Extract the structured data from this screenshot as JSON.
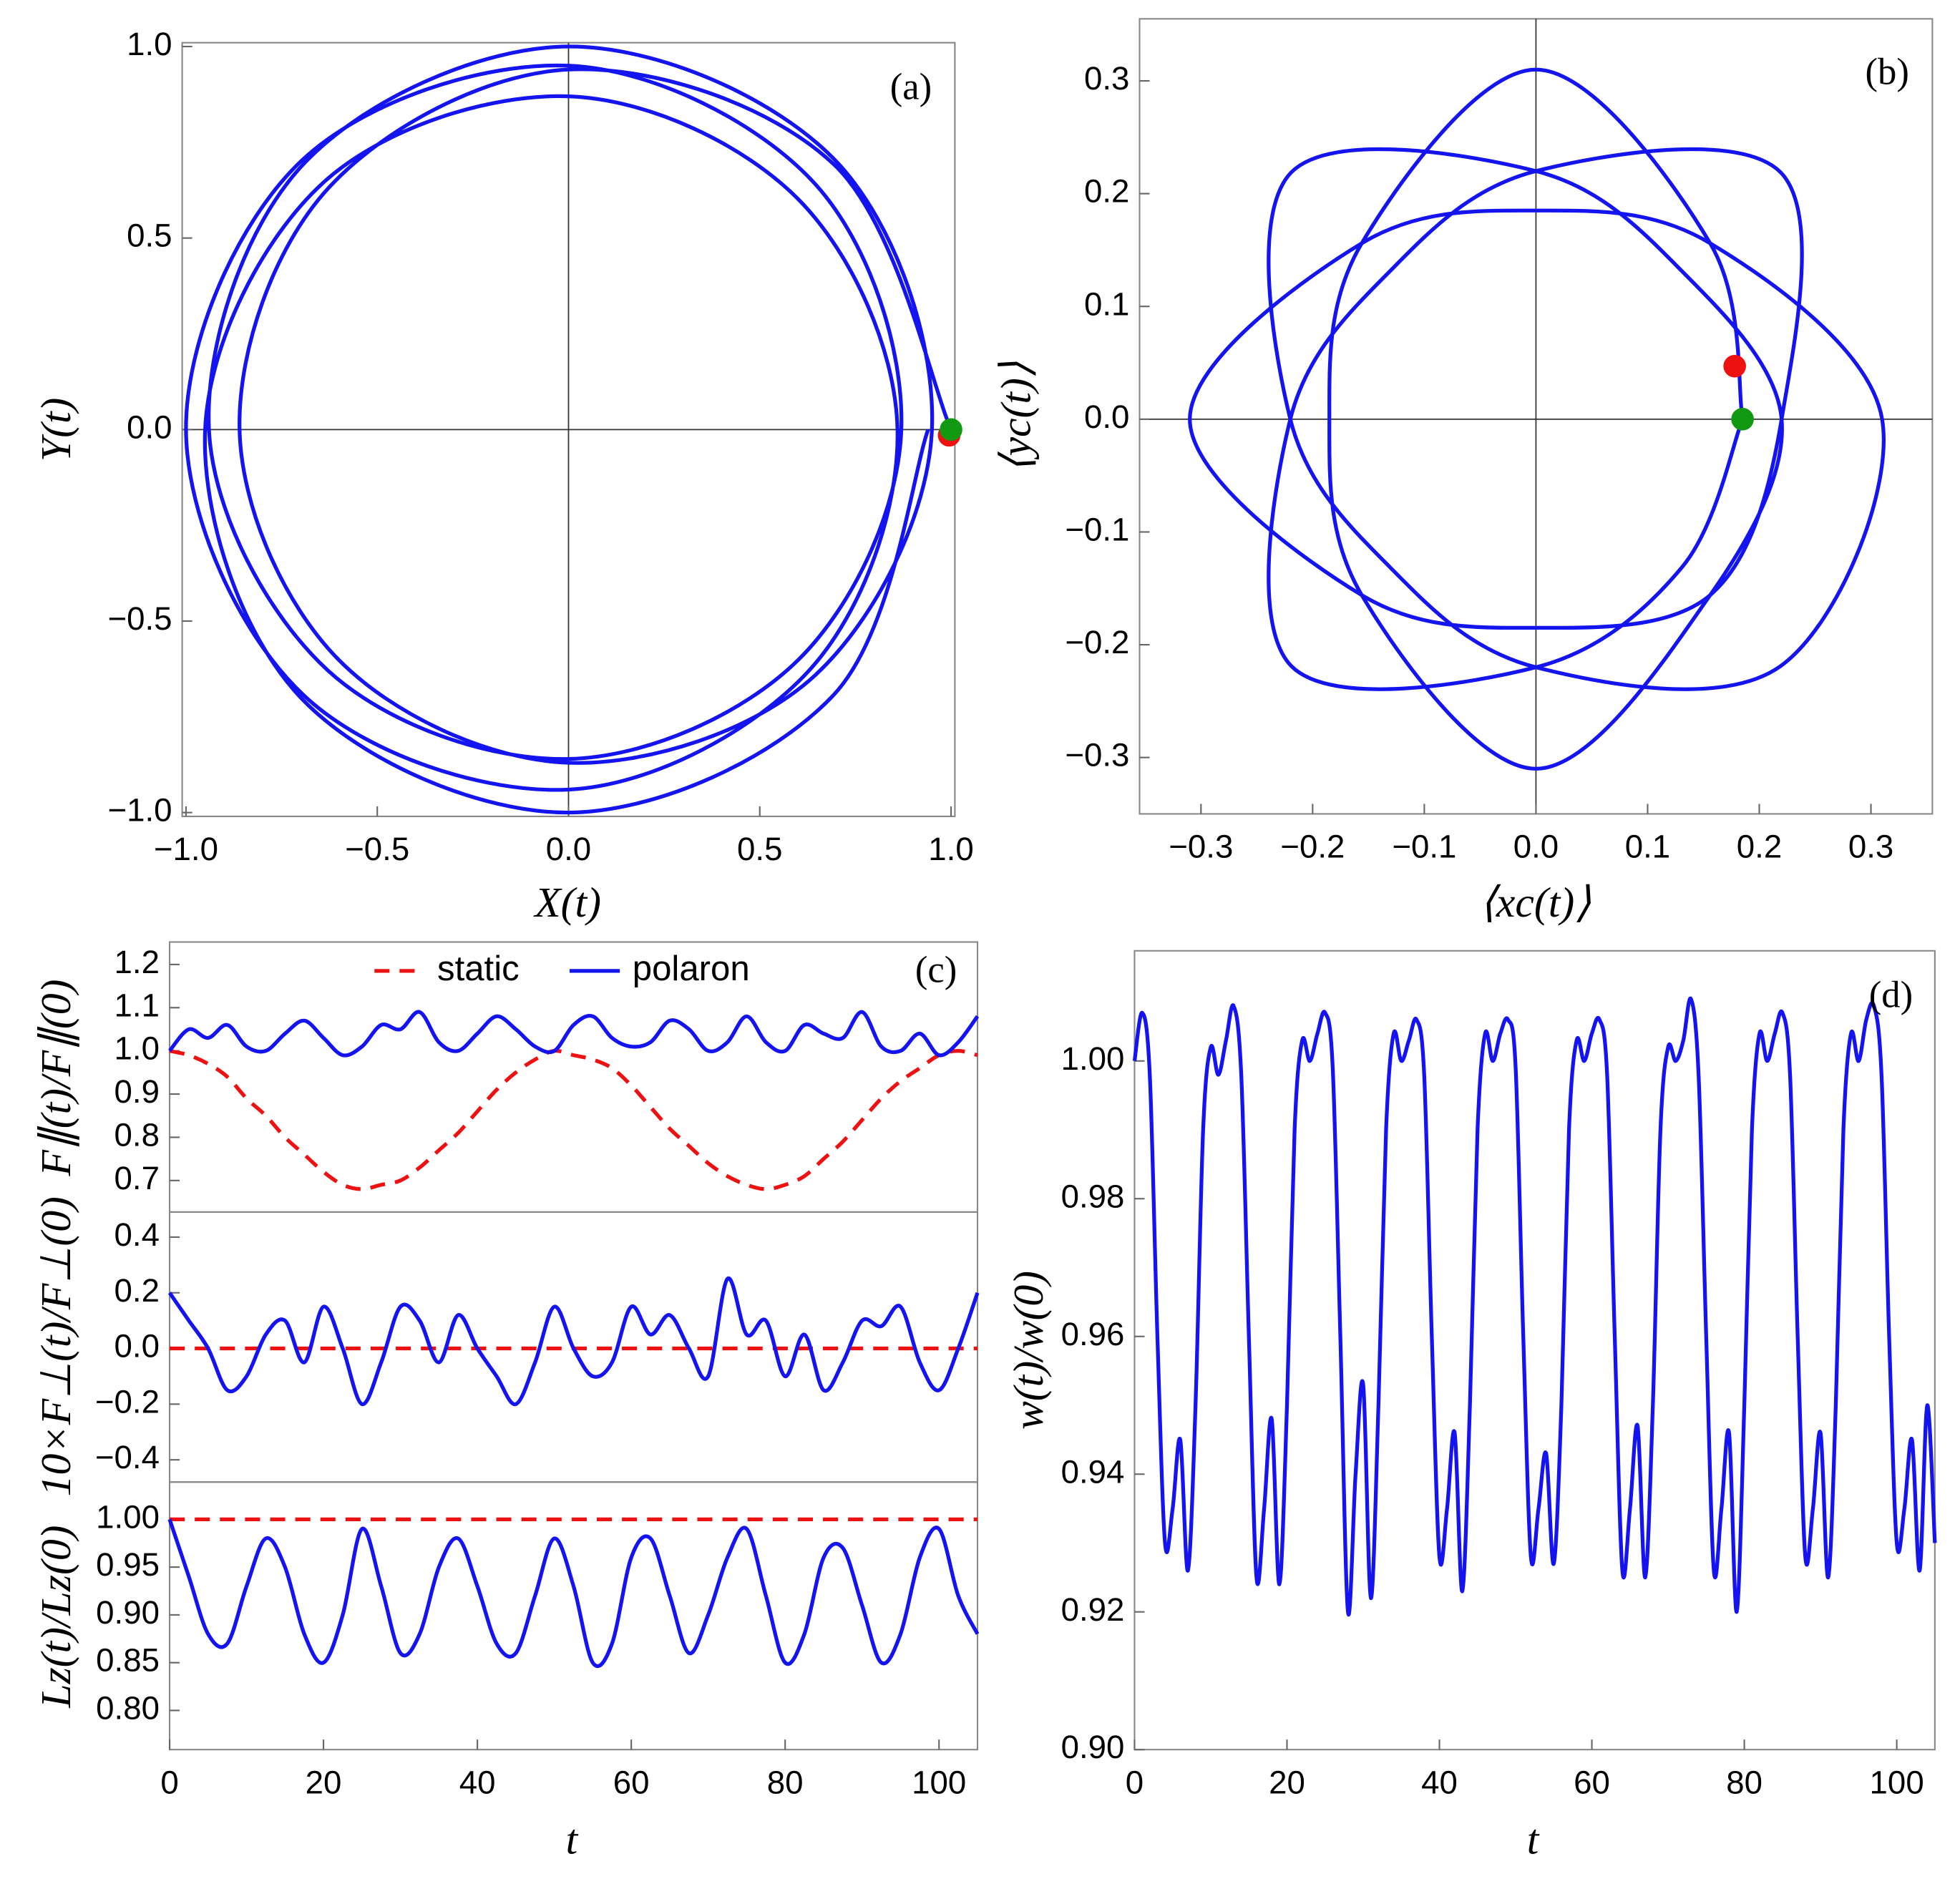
{
  "chart_data": [
    {
      "type": "line",
      "annotation": "(a)",
      "xlabel": "X(t)",
      "ylabel": "Y(t)",
      "color": "#1414f0",
      "zero_lines": true,
      "x": [
        1.0,
        0.693,
        0,
        -0.629,
        -0.86,
        -0.601,
        0,
        0.643,
        0.95,
        0.7,
        0,
        -0.693,
        -0.94,
        -0.629,
        0,
        0.601,
        0.87,
        0.643,
        0,
        -0.7,
        -1.0,
        -0.693,
        0,
        0.629,
        0.86,
        0.601,
        0,
        -0.643,
        -0.95,
        -0.7,
        0,
        0.693,
        0.94
      ],
      "values": [
        0,
        0.693,
        0.94,
        0.629,
        0,
        -0.601,
        -0.87,
        -0.643,
        0,
        0.7,
        1.0,
        0.693,
        0,
        -0.629,
        -0.86,
        -0.601,
        0,
        0.643,
        0.95,
        0.7,
        0,
        -0.693,
        -0.94,
        -0.629,
        0,
        0.601,
        0.87,
        0.643,
        0,
        -0.7,
        -1.0,
        -0.693,
        0
      ],
      "points": [
        {
          "x": 0.995,
          "y": -0.015,
          "color": "#ee1111"
        },
        {
          "x": 1.0,
          "y": 0.0,
          "color": "#119911"
        }
      ],
      "xlim": [
        -1.01,
        1.01
      ],
      "ylim": [
        -1.01,
        1.01
      ],
      "xticks": [
        {
          "value": -1,
          "label": "−1.0"
        },
        {
          "value": -0.5,
          "label": "−0.5"
        },
        {
          "value": 0,
          "label": "0.0"
        },
        0.5,
        {
          "value": 1,
          "label": "1.0"
        }
      ],
      "yticks": [
        {
          "value": -1,
          "label": "−1.0"
        },
        {
          "value": -0.5,
          "label": "−0.5"
        },
        {
          "value": 0,
          "label": "0.0"
        },
        0.5,
        {
          "value": 1,
          "label": "1.0"
        }
      ]
    },
    {
      "type": "line",
      "annotation": "(b)",
      "xlabel": "⟨xc(t)⟩",
      "ylabel": "⟨yc(t)⟩",
      "color": "#1414f0",
      "zero_lines": true,
      "x": [
        0.185,
        0.156,
        0,
        -0.156,
        -0.185,
        -0.156,
        0,
        0.156,
        0.22,
        0.131,
        0,
        -0.219,
        -0.22,
        -0.131,
        0,
        0.219,
        0.31,
        0.156,
        0,
        -0.156,
        -0.31,
        -0.156,
        0,
        0.156,
        0.22,
        0.219,
        0,
        -0.131,
        -0.22,
        -0.219,
        0,
        0.131,
        0.185
      ],
      "values": [
        0,
        0.156,
        0.31,
        0.156,
        0,
        -0.156,
        -0.31,
        -0.156,
        0,
        0.131,
        0.22,
        0.219,
        0,
        -0.131,
        -0.22,
        -0.219,
        0,
        0.156,
        0.185,
        0.156,
        0,
        -0.156,
        -0.185,
        -0.156,
        0,
        0.219,
        0.22,
        0.131,
        0,
        -0.219,
        -0.22,
        -0.131,
        0
      ],
      "points": [
        {
          "x": 0.178,
          "y": 0.047,
          "color": "#ee1111"
        },
        {
          "x": 0.185,
          "y": 0.0,
          "color": "#119911"
        }
      ],
      "xlim": [
        -0.355,
        0.355
      ],
      "ylim": [
        -0.35,
        0.355
      ],
      "xticks": [
        {
          "value": -0.3,
          "label": "−0.3"
        },
        {
          "value": -0.2,
          "label": "−0.2"
        },
        {
          "value": -0.1,
          "label": "−0.1"
        },
        {
          "value": 0,
          "label": "0.0"
        },
        0.1,
        0.2,
        0.3
      ],
      "yticks": [
        {
          "value": -0.3,
          "label": "−0.3"
        },
        {
          "value": -0.2,
          "label": "−0.2"
        },
        {
          "value": -0.1,
          "label": "−0.1"
        },
        {
          "value": 0,
          "label": "0.0"
        },
        0.1,
        0.2,
        0.3
      ]
    },
    {
      "type": "line",
      "annotation": "(c)",
      "ylabel": "F∥(t)/F∥(0)",
      "x": [
        0,
        2.5,
        5,
        7.5,
        10,
        12.5,
        15,
        17.5,
        20,
        22.5,
        25,
        27.5,
        30,
        32.5,
        35,
        37.5,
        40,
        42.5,
        45,
        47.5,
        50,
        52.5,
        55,
        57.5,
        60,
        62.5,
        65,
        67.5,
        70,
        72.5,
        75,
        77.5,
        80,
        82.5,
        85,
        87.5,
        90,
        92.5,
        95,
        97.5,
        100,
        102.5,
        105
      ],
      "series": [
        {
          "name": "static",
          "color": "#ee1111",
          "dashed": true,
          "values": [
            1.0,
            0.99,
            0.97,
            0.94,
            0.89,
            0.85,
            0.8,
            0.76,
            0.72,
            0.69,
            0.68,
            0.69,
            0.7,
            0.73,
            0.77,
            0.81,
            0.86,
            0.91,
            0.95,
            0.98,
            1.0,
            0.99,
            0.98,
            0.96,
            0.92,
            0.87,
            0.82,
            0.78,
            0.74,
            0.71,
            0.69,
            0.68,
            0.69,
            0.71,
            0.75,
            0.79,
            0.84,
            0.89,
            0.93,
            0.96,
            0.99,
            1.0,
            0.99
          ]
        },
        {
          "name": "polaron",
          "color": "#1414f0",
          "values": [
            1.0,
            1.05,
            1.03,
            1.06,
            1.01,
            1.0,
            1.04,
            1.07,
            1.03,
            0.99,
            1.01,
            1.06,
            1.05,
            1.09,
            1.02,
            1.0,
            1.04,
            1.08,
            1.05,
            1.01,
            1.0,
            1.06,
            1.08,
            1.03,
            1.01,
            1.02,
            1.07,
            1.05,
            1.0,
            1.02,
            1.08,
            1.02,
            1.0,
            1.06,
            1.04,
            1.03,
            1.09,
            1.01,
            1.0,
            1.04,
            0.99,
            1.02,
            1.08
          ]
        }
      ],
      "xlim": [
        0,
        105
      ],
      "ylim": [
        0.627,
        1.252
      ],
      "yticks": [
        0.7,
        0.8,
        0.9,
        {
          "value": 1,
          "label": "1.0"
        },
        1.1,
        1.2
      ]
    },
    {
      "type": "line",
      "ylabel": "10×F⊥(t)/F⊥(0)",
      "x": [
        0,
        2.5,
        5,
        7.5,
        10,
        12.5,
        15,
        17.5,
        20,
        22.5,
        25,
        27.5,
        30,
        32.5,
        35,
        37.5,
        40,
        42.5,
        45,
        47.5,
        50,
        52.5,
        55,
        57.5,
        60,
        62.5,
        65,
        67.5,
        70,
        72.5,
        75,
        77.5,
        80,
        82.5,
        85,
        87.5,
        90,
        92.5,
        95,
        97.5,
        100,
        102.5,
        105
      ],
      "series": [
        {
          "color": "#ee1111",
          "dashed": true,
          "values": [
            0,
            0,
            0,
            0,
            0,
            0,
            0,
            0,
            0,
            0,
            0,
            0,
            0,
            0,
            0,
            0,
            0,
            0,
            0,
            0,
            0,
            0,
            0,
            0,
            0,
            0,
            0,
            0,
            0,
            0,
            0,
            0,
            0,
            0,
            0,
            0,
            0,
            0,
            0,
            0,
            0,
            0,
            0
          ]
        },
        {
          "color": "#1414f0",
          "values": [
            0.2,
            0.1,
            0.0,
            -0.15,
            -0.1,
            0.05,
            0.1,
            -0.05,
            0.15,
            0.0,
            -0.2,
            -0.05,
            0.15,
            0.1,
            -0.05,
            0.12,
            0.0,
            -0.1,
            -0.2,
            -0.05,
            0.15,
            0.0,
            -0.1,
            -0.05,
            0.15,
            0.05,
            0.12,
            0.0,
            -0.1,
            0.25,
            0.05,
            0.1,
            -0.1,
            0.05,
            -0.15,
            -0.05,
            0.1,
            0.08,
            0.15,
            -0.05,
            -0.15,
            0.0,
            0.2
          ]
        }
      ],
      "xlim": [
        0,
        105
      ],
      "ylim": [
        -0.48,
        0.49
      ],
      "yticks": [
        {
          "value": -0.4,
          "label": "−0.4"
        },
        {
          "value": -0.2,
          "label": "−0.2"
        },
        {
          "value": 0,
          "label": "0.0"
        },
        0.2,
        0.4
      ]
    },
    {
      "type": "line",
      "ylabel": "Lz(t)/Lz(0)",
      "xlabel": "t",
      "x": [
        0,
        2.5,
        5,
        7.5,
        10,
        12.5,
        15,
        17.5,
        20,
        22.5,
        25,
        27.5,
        30,
        32.5,
        35,
        37.5,
        40,
        42.5,
        45,
        47.5,
        50,
        52.5,
        55,
        57.5,
        60,
        62.5,
        65,
        67.5,
        70,
        72.5,
        75,
        77.5,
        80,
        82.5,
        85,
        87.5,
        90,
        92.5,
        95,
        97.5,
        100,
        102.5,
        105
      ],
      "series": [
        {
          "color": "#ee1111",
          "dashed": true,
          "values": [
            1,
            1,
            1,
            1,
            1,
            1,
            1,
            1,
            1,
            1,
            1,
            1,
            1,
            1,
            1,
            1,
            1,
            1,
            1,
            1,
            1,
            1,
            1,
            1,
            1,
            1,
            1,
            1,
            1,
            1,
            1,
            1,
            1,
            1,
            1,
            1,
            1,
            1,
            1,
            1,
            1,
            1,
            1
          ]
        },
        {
          "color": "#1414f0",
          "values": [
            1.0,
            0.94,
            0.88,
            0.87,
            0.93,
            0.98,
            0.95,
            0.88,
            0.85,
            0.9,
            0.99,
            0.93,
            0.86,
            0.88,
            0.95,
            0.98,
            0.93,
            0.87,
            0.86,
            0.92,
            0.98,
            0.93,
            0.85,
            0.87,
            0.96,
            0.98,
            0.92,
            0.86,
            0.9,
            0.96,
            0.99,
            0.92,
            0.85,
            0.88,
            0.96,
            0.97,
            0.91,
            0.85,
            0.88,
            0.96,
            0.99,
            0.92,
            0.88
          ]
        }
      ],
      "xlim": [
        0,
        105
      ],
      "ylim": [
        0.759,
        1.039
      ],
      "xticks": [
        0,
        20,
        40,
        60,
        80,
        100
      ],
      "yticks": [
        {
          "value": 0.8,
          "label": "0.80"
        },
        0.85,
        {
          "value": 0.9,
          "label": "0.90"
        },
        0.95,
        {
          "value": 1,
          "label": "1.00"
        }
      ]
    },
    {
      "type": "line",
      "annotation": "(d)",
      "xlabel": "t",
      "ylabel": "w(t)/w(0)",
      "color": "#1414f0",
      "x": [
        0,
        1,
        2,
        3,
        4,
        5,
        6,
        7,
        8,
        9,
        10,
        11,
        12,
        13,
        14,
        15,
        16,
        17,
        18,
        19,
        20,
        21,
        22,
        23,
        24,
        25,
        26,
        27,
        28,
        29,
        30,
        31,
        32,
        33,
        34,
        35,
        36,
        37,
        38,
        39,
        40,
        41,
        42,
        43,
        44,
        45,
        46,
        47,
        48,
        49,
        50,
        51,
        52,
        53,
        54,
        55,
        56,
        57,
        58,
        59,
        60,
        61,
        62,
        63,
        64,
        65,
        66,
        67,
        68,
        69,
        70,
        71,
        72,
        73,
        74,
        75,
        76,
        77,
        78,
        79,
        80,
        81,
        82,
        83,
        84,
        85,
        86,
        87,
        88,
        89,
        90,
        91,
        92,
        93,
        94,
        95,
        96,
        97,
        98,
        99,
        100,
        101,
        102,
        103,
        104,
        105
      ],
      "values": [
        1.0,
        1.007,
        0.998,
        0.96,
        0.93,
        0.935,
        0.945,
        0.926,
        0.95,
        0.99,
        1.002,
        0.998,
        1.003,
        1.008,
        0.998,
        0.96,
        0.925,
        0.935,
        0.948,
        0.924,
        0.95,
        0.99,
        1.003,
        1.0,
        1.004,
        1.007,
        0.999,
        0.96,
        0.92,
        0.94,
        0.953,
        0.922,
        0.95,
        0.99,
        1.004,
        1.0,
        1.003,
        1.006,
        0.998,
        0.96,
        0.928,
        0.935,
        0.946,
        0.923,
        0.95,
        0.99,
        1.004,
        1.0,
        1.004,
        1.006,
        0.999,
        0.96,
        0.928,
        0.935,
        0.943,
        0.927,
        0.95,
        0.99,
        1.003,
        1.0,
        1.004,
        1.006,
        0.998,
        0.96,
        0.926,
        0.935,
        0.947,
        0.925,
        0.95,
        0.99,
        1.002,
        1.0,
        1.003,
        1.009,
        0.998,
        0.96,
        0.926,
        0.935,
        0.946,
        0.92,
        0.95,
        0.99,
        1.004,
        1.0,
        1.004,
        1.007,
        0.998,
        0.96,
        0.928,
        0.935,
        0.946,
        0.925,
        0.95,
        0.99,
        1.004,
        1.0,
        1.006,
        1.008,
        0.998,
        0.96,
        0.93,
        0.935,
        0.945,
        0.926,
        0.95,
        0.93
      ],
      "xlim": [
        0,
        105
      ],
      "ylim": [
        0.9,
        1.016
      ],
      "xticks": [
        0,
        20,
        40,
        60,
        80,
        100
      ],
      "yticks": [
        {
          "value": 0.9,
          "label": "0.90"
        },
        0.92,
        0.94,
        0.96,
        0.98,
        {
          "value": 1,
          "label": "1.00"
        }
      ]
    }
  ]
}
